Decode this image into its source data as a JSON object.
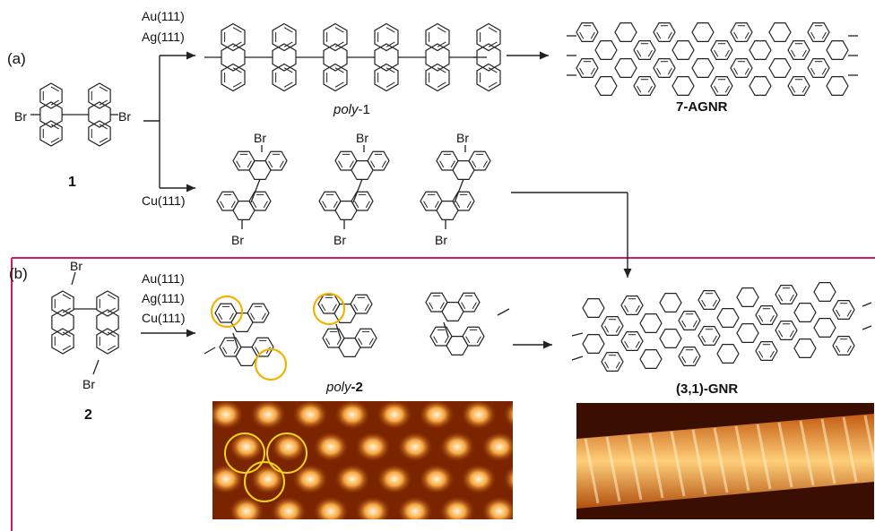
{
  "panel_a": {
    "label": "(a)",
    "compound": "1",
    "br": "Br",
    "substrates_top": [
      "Au(111)",
      "Ag(111)"
    ],
    "substrate_bottom": "Cu(111)",
    "intermediate_prefix": "poly",
    "intermediate_number": "-1",
    "product": "7-AGNR"
  },
  "panel_b": {
    "label": "(b)",
    "compound": "2",
    "br": "Br",
    "substrates": [
      "Au(111)",
      "Ag(111)",
      "Cu(111)"
    ],
    "intermediate_prefix": "poly",
    "intermediate_number": "-2",
    "product": "(3,1)-GNR"
  },
  "colors": {
    "frame": "#d81b60",
    "highlight_circle": "#f0b400",
    "bond": "#222222",
    "stm_dark": "#3a0e00",
    "stm_bright": "#fff6d6"
  }
}
